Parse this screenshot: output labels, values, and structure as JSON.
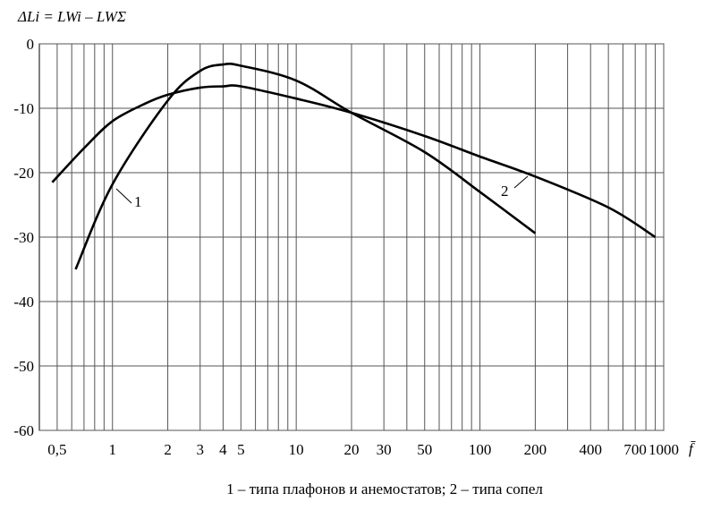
{
  "chart_data": {
    "type": "line",
    "y_label": "ΔLi = LWi – LWΣ",
    "x_label": "f̄",
    "caption": "1 – типа плафонов и анемостатов; 2 – типа сопел",
    "log_x": true,
    "grid": true,
    "xlim": [
      0.4,
      1000
    ],
    "ylim": [
      -60,
      0
    ],
    "xticks": [
      {
        "value": 0.5,
        "label": "0,5"
      },
      1,
      2,
      3,
      4,
      5,
      10,
      20,
      30,
      50,
      100,
      200,
      400,
      700,
      1000
    ],
    "xgrid": [
      0.5,
      0.6,
      0.7,
      0.8,
      0.9,
      1,
      2,
      3,
      4,
      5,
      6,
      7,
      8,
      9,
      10,
      20,
      30,
      40,
      50,
      60,
      70,
      80,
      90,
      100,
      200,
      300,
      400,
      500,
      600,
      700,
      800,
      900,
      1000
    ],
    "yticks": [
      0,
      -10,
      -20,
      -30,
      -40,
      -50,
      -60
    ],
    "series": [
      {
        "name": "1",
        "color": "#000000",
        "x": [
          0.63,
          1,
          2,
          3,
          4,
          5,
          10,
          20,
          50,
          100,
          200
        ],
        "values": [
          -35,
          -21.8,
          -8.8,
          -4.2,
          -3.2,
          -3.4,
          -5.7,
          -10.7,
          -16.8,
          -23,
          -29.4
        ]
      },
      {
        "name": "2",
        "color": "#000000",
        "x": [
          0.47,
          0.7,
          1,
          1.5,
          2,
          3,
          4,
          5,
          10,
          20,
          50,
          100,
          200,
          500,
          900
        ],
        "values": [
          -21.5,
          -16.2,
          -12,
          -9.3,
          -7.9,
          -6.8,
          -6.6,
          -6.6,
          -8.5,
          -10.7,
          -14.3,
          -17.5,
          -20.6,
          -25.4,
          -30
        ]
      }
    ]
  }
}
